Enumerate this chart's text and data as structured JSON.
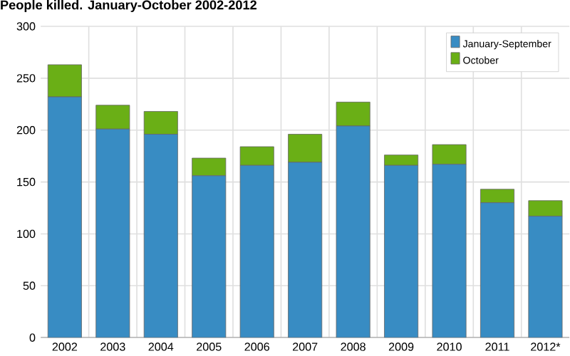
{
  "chart_data": {
    "type": "bar",
    "stacked": true,
    "title": "People killed. January-October 2002-2012",
    "categories": [
      "2002",
      "2003",
      "2004",
      "2005",
      "2006",
      "2007",
      "2008",
      "2009",
      "2010",
      "2011",
      "2012*"
    ],
    "series": [
      {
        "name": "January-September",
        "color": "#388cc3",
        "values": [
          232,
          201,
          196,
          156,
          166,
          169,
          204,
          166,
          167,
          130,
          117
        ]
      },
      {
        "name": "October",
        "color": "#6aaf16",
        "values": [
          31,
          23,
          22,
          17,
          18,
          27,
          23,
          10,
          19,
          13,
          15
        ]
      }
    ],
    "ylim": [
      0,
      300
    ],
    "yticks": [
      0,
      50,
      100,
      150,
      200,
      250,
      300
    ],
    "grid": true,
    "legend": "top right"
  }
}
